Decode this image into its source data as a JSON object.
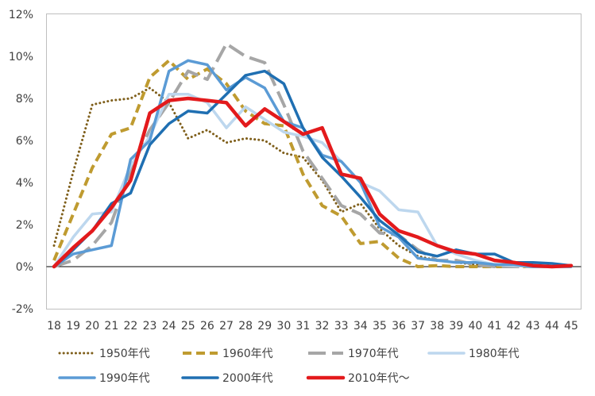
{
  "chart_data": {
    "type": "line",
    "title": "",
    "xlabel": "",
    "ylabel": "",
    "x": [
      18,
      19,
      20,
      21,
      22,
      23,
      24,
      25,
      26,
      27,
      28,
      29,
      30,
      31,
      32,
      33,
      34,
      35,
      36,
      37,
      38,
      39,
      40,
      41,
      42,
      43,
      44,
      45
    ],
    "x_tick_labels": [
      "18",
      "19",
      "20",
      "21",
      "22",
      "23",
      "24",
      "25",
      "26",
      "27",
      "28",
      "29",
      "30",
      "31",
      "32",
      "33",
      "34",
      "35",
      "36",
      "37",
      "38",
      "39",
      "40",
      "41",
      "42",
      "43",
      "44",
      "45"
    ],
    "ylim": [
      -2,
      12
    ],
    "y_ticks": [
      -2,
      0,
      2,
      4,
      6,
      8,
      10,
      12
    ],
    "y_tick_labels": [
      "-2%",
      "0%",
      "2%",
      "4%",
      "6%",
      "8%",
      "10%",
      "12%"
    ],
    "grid": false,
    "legend_position": "bottom",
    "series": [
      {
        "name": "1950年代",
        "color": "#7f5f1b",
        "style": "dotted",
        "values": [
          1.0,
          4.5,
          7.7,
          7.9,
          8.0,
          8.5,
          7.8,
          6.1,
          6.5,
          5.9,
          6.1,
          6.0,
          5.4,
          5.2,
          4.1,
          2.6,
          3.0,
          1.8,
          1.0,
          0.5,
          0.3,
          0.2,
          0.1,
          0.05,
          0.05,
          0.02,
          0.02,
          0.01
        ]
      },
      {
        "name": "1960年代",
        "color": "#bf9b30",
        "style": "dashed",
        "values": [
          0.3,
          2.5,
          4.7,
          6.3,
          6.6,
          9.0,
          9.8,
          8.9,
          9.4,
          8.7,
          7.4,
          6.8,
          6.7,
          4.4,
          2.9,
          2.4,
          1.1,
          1.2,
          0.4,
          0.0,
          0.05,
          0.0,
          0.0,
          0.0,
          0.0,
          0.0,
          0.0,
          0.0
        ]
      },
      {
        "name": "1970年代",
        "color": "#a6a6a6",
        "style": "longdash",
        "values": [
          0.0,
          0.3,
          1.0,
          2.1,
          4.6,
          6.5,
          7.8,
          9.3,
          8.9,
          10.6,
          10.0,
          9.7,
          7.7,
          5.5,
          4.2,
          2.9,
          2.5,
          1.6,
          1.5,
          0.8,
          0.3,
          0.3,
          0.1,
          0.0,
          0.0,
          0.0,
          0.0,
          0.0
        ]
      },
      {
        "name": "1980年代",
        "color": "#bdd7ee",
        "style": "solid",
        "values": [
          0.0,
          1.4,
          2.5,
          2.6,
          4.8,
          6.2,
          8.2,
          8.2,
          7.8,
          6.6,
          7.6,
          7.0,
          6.4,
          6.2,
          5.9,
          5.0,
          4.0,
          3.6,
          2.7,
          2.6,
          1.0,
          0.6,
          0.3,
          0.1,
          0.05,
          0.0,
          0.0,
          0.0
        ]
      },
      {
        "name": "1990年代",
        "color": "#5b9bd5",
        "style": "solid",
        "values": [
          0.0,
          0.6,
          0.8,
          1.0,
          5.1,
          6.0,
          9.3,
          9.8,
          9.6,
          8.4,
          9.0,
          8.5,
          6.9,
          6.6,
          5.3,
          5.0,
          4.0,
          1.9,
          1.4,
          0.4,
          0.3,
          0.2,
          0.2,
          0.1,
          0.1,
          0.0,
          0.0,
          0.0
        ]
      },
      {
        "name": "2000年代",
        "color": "#1f6fb2",
        "style": "solid",
        "values": [
          0.0,
          0.8,
          1.7,
          3.0,
          3.5,
          5.8,
          6.8,
          7.4,
          7.3,
          8.2,
          9.1,
          9.3,
          8.7,
          6.6,
          5.2,
          4.3,
          3.3,
          2.2,
          1.5,
          0.7,
          0.5,
          0.8,
          0.6,
          0.6,
          0.2,
          0.2,
          0.15,
          0.05
        ]
      },
      {
        "name": "2010年代～",
        "color": "#e31a1c",
        "style": "solid",
        "values": [
          0.0,
          0.9,
          1.7,
          2.8,
          4.1,
          7.3,
          7.9,
          8.0,
          7.9,
          7.8,
          6.7,
          7.5,
          6.9,
          6.3,
          6.6,
          4.4,
          4.2,
          2.5,
          1.7,
          1.4,
          1.0,
          0.7,
          0.6,
          0.3,
          0.2,
          0.05,
          0.0,
          0.05
        ]
      }
    ]
  }
}
